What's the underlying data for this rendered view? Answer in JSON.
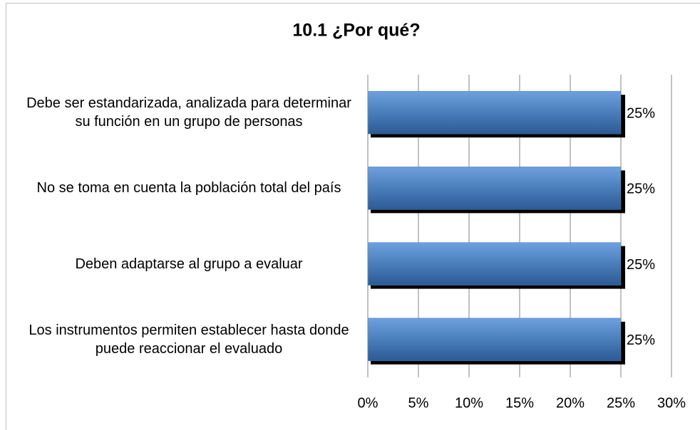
{
  "chart_data": {
    "type": "bar",
    "orientation": "horizontal",
    "title": "10.1 ¿Por qué?",
    "categories": [
      "Debe ser estandarizada, analizada para determinar su función en un grupo de personas",
      "No se toma en cuenta la población total del país",
      "Deben adaptarse al grupo a evaluar",
      "Los instrumentos permiten establecer hasta donde puede reaccionar el evaluado"
    ],
    "values": [
      25,
      25,
      25,
      25
    ],
    "value_labels": [
      "25%",
      "25%",
      "25%",
      "25%"
    ],
    "color": "#4a7ebb",
    "xlim": [
      0,
      30
    ],
    "xticks": [
      {
        "value": 0,
        "label": "0%"
      },
      {
        "value": 5,
        "label": "5%"
      },
      {
        "value": 10,
        "label": "10%"
      },
      {
        "value": 15,
        "label": "15%"
      },
      {
        "value": 20,
        "label": "20%"
      },
      {
        "value": 25,
        "label": "25%"
      },
      {
        "value": 30,
        "label": "30%"
      }
    ],
    "grid": true
  }
}
